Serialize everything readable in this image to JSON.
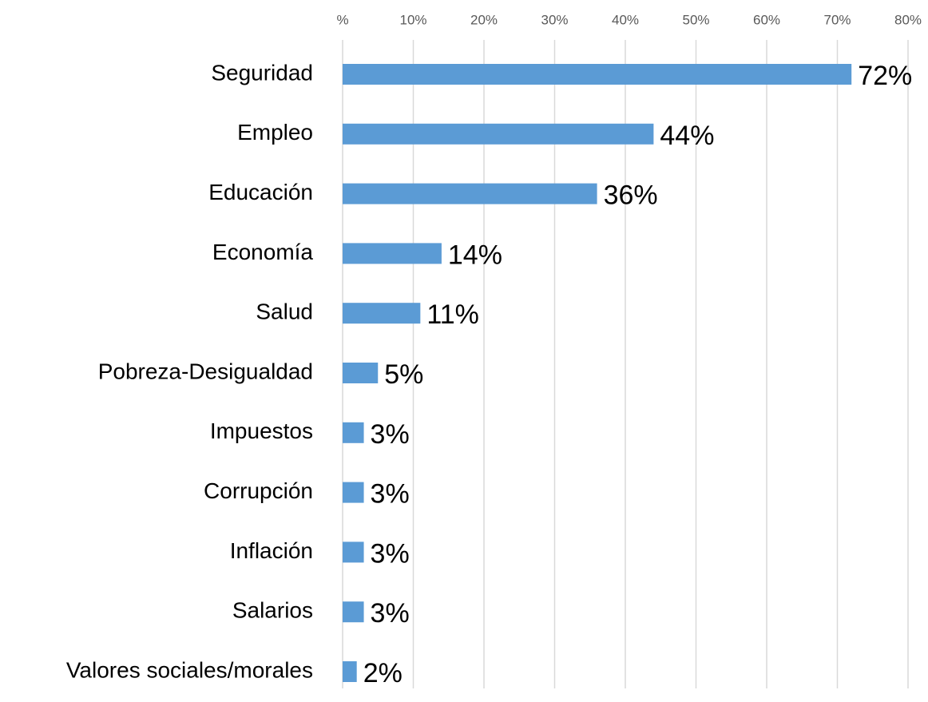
{
  "chart_data": {
    "type": "barh",
    "categories": [
      "Seguridad",
      "Empleo",
      "Educación",
      "Economía",
      "Salud",
      "Pobreza-Desigualdad",
      "Impuestos",
      "Corrupción",
      "Inflación",
      "Salarios",
      "Valores sociales/morales"
    ],
    "values": [
      72,
      44,
      36,
      14,
      11,
      5,
      3,
      3,
      3,
      3,
      2
    ],
    "value_labels": [
      "72%",
      "44%",
      "36%",
      "14%",
      "11%",
      "5%",
      "3%",
      "3%",
      "3%",
      "3%",
      "2%"
    ],
    "color": "#5b9bd5",
    "xlim": [
      0,
      80
    ],
    "xticks": [
      {
        "value": 0,
        "label": "%"
      },
      {
        "value": 10,
        "label": "10%"
      },
      {
        "value": 20,
        "label": "20%"
      },
      {
        "value": 30,
        "label": "30%"
      },
      {
        "value": 40,
        "label": "40%"
      },
      {
        "value": 50,
        "label": "50%"
      },
      {
        "value": 60,
        "label": "60%"
      },
      {
        "value": 70,
        "label": "70%"
      },
      {
        "value": 80,
        "label": "80%"
      }
    ],
    "grid": true
  }
}
